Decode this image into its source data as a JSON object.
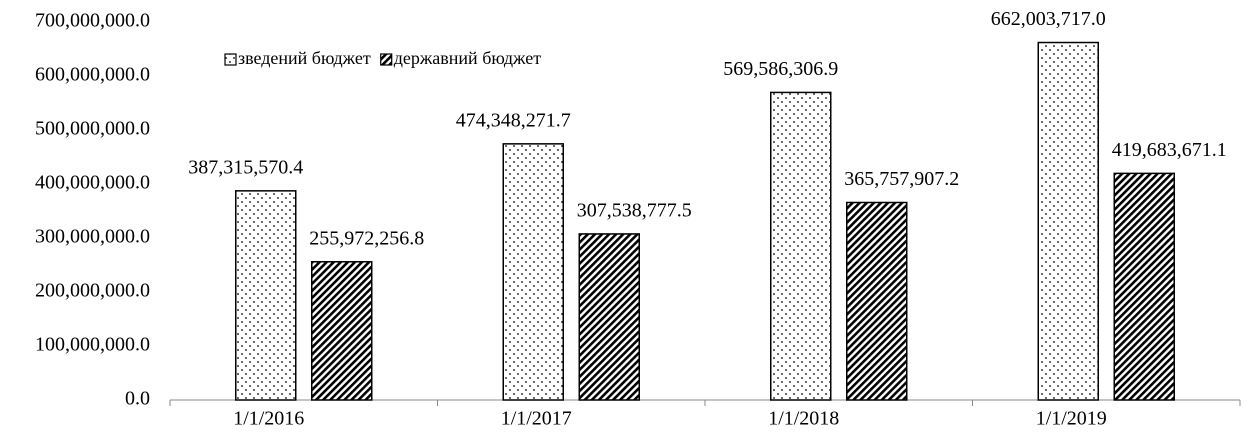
{
  "chart_data": {
    "type": "bar",
    "categories": [
      "1/1/2016",
      "1/1/2017",
      "1/1/2018",
      "1/1/2019"
    ],
    "series": [
      {
        "name": "зведений бюджет",
        "color": "#000000",
        "pattern": "dots",
        "values": [
          387315570.4,
          474348271.7,
          569586306.9,
          662003717.0
        ],
        "value_labels": [
          "387,315,570.4",
          "474,348,271.7",
          "569,586,306.9",
          "662,003,717.0"
        ]
      },
      {
        "name": "державний бюджет",
        "color": "#000000",
        "pattern": "hatch",
        "values": [
          255972256.8,
          307538777.5,
          365757907.2,
          419683671.1
        ],
        "value_labels": [
          "255,972,256.8",
          "307,538,777.5",
          "365,757,907.2",
          "419,683,671.1"
        ]
      }
    ],
    "ylim": [
      0,
      700000000
    ],
    "yticks": [
      {
        "value": 0,
        "label": "0.0"
      },
      {
        "value": 100000000,
        "label": "100,000,000.0"
      },
      {
        "value": 200000000,
        "label": "200,000,000.0"
      },
      {
        "value": 300000000,
        "label": "300,000,000.0"
      },
      {
        "value": 400000000,
        "label": "400,000,000.0"
      },
      {
        "value": 500000000,
        "label": "500,000,000.0"
      },
      {
        "value": 600000000,
        "label": "600,000,000.0"
      },
      {
        "value": 700000000,
        "label": "700,000,000.0"
      }
    ],
    "grid": false,
    "legend": "top-left"
  }
}
